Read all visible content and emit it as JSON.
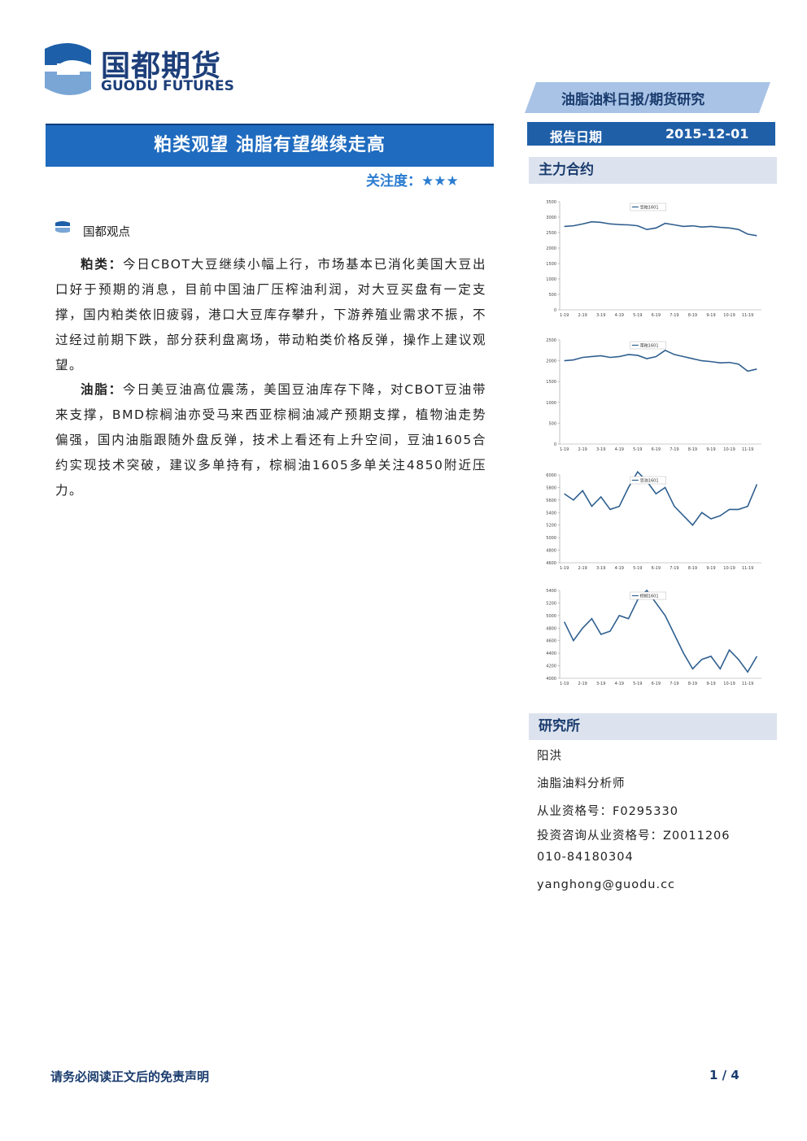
{
  "header": {
    "logo_cn": "国都期货",
    "logo_en": "GUODU FUTURES",
    "category": "油脂油料日报/期货研究"
  },
  "title": "粕类观望 油脂有望继续走高",
  "attention": {
    "label": "关注度：",
    "stars": "★★★"
  },
  "section_heading": "国都观点",
  "paragraphs": [
    {
      "label": "粕类：",
      "text": "今日CBOT大豆继续小幅上行，市场基本已消化美国大豆出口好于预期的消息，目前中国油厂压榨油利润，对大豆买盘有一定支撑，国内粕类依旧疲弱，港口大豆库存攀升，下游养殖业需求不振，不过经过前期下跌，部分获利盘离场，带动粕类价格反弹，操作上建议观望。"
    },
    {
      "label": "油脂：",
      "text": "今日美豆油高位震荡，美国豆油库存下降，对CBOT豆油带来支撑，BMD棕榈油亦受马来西亚棕榈油减产预期支撑，植物油走势偏强，国内油脂跟随外盘反弹，技术上看还有上升空间，豆油1605合约实现技术突破，建议多单持有，棕榈油1605多单关注4850附近压力。"
    }
  ],
  "report_date": {
    "label": "报告日期",
    "value": "2015-12-01"
  },
  "contracts_heading": "主力合约",
  "chart_data": [
    {
      "type": "line",
      "categories": [
        "1-19",
        null,
        "2-19",
        null,
        "3-19",
        null,
        "4-19",
        null,
        "5-19",
        null,
        "6-19",
        null,
        "7-19",
        null,
        "8-19",
        null,
        "9-19",
        null,
        "10-19",
        null,
        "11-19",
        null
      ],
      "series": [
        {
          "name": "豆粕1601",
          "color": "#2f5f8f",
          "values": [
            2700,
            2720,
            2780,
            2850,
            2830,
            2780,
            2760,
            2750,
            2720,
            2600,
            2650,
            2800,
            2750,
            2700,
            2720,
            2680,
            2700,
            2670,
            2650,
            2600,
            2450,
            2400
          ]
        }
      ],
      "ylim": [
        0,
        3500
      ],
      "yticks": [
        0,
        500,
        1000,
        1500,
        2000,
        2500,
        3000,
        3500
      ]
    },
    {
      "type": "line",
      "categories": [
        "1-19",
        null,
        "2-19",
        null,
        "3-19",
        null,
        "4-19",
        null,
        "5-19",
        null,
        "6-19",
        null,
        "7-19",
        null,
        "8-19",
        null,
        "9-19",
        null,
        "10-19",
        null,
        "11-19",
        null
      ],
      "series": [
        {
          "name": "菜粕1601",
          "color": "#2f5f8f",
          "values": [
            2000,
            2020,
            2080,
            2100,
            2120,
            2080,
            2100,
            2150,
            2130,
            2050,
            2100,
            2250,
            2150,
            2100,
            2050,
            2000,
            1980,
            1950,
            1960,
            1920,
            1750,
            1800
          ]
        }
      ],
      "ylim": [
        0,
        2500
      ],
      "yticks": [
        0,
        500,
        1000,
        1500,
        2000,
        2500
      ]
    },
    {
      "type": "line",
      "categories": [
        "1-19",
        null,
        "2-19",
        null,
        "3-19",
        null,
        "4-19",
        null,
        "5-19",
        null,
        "6-19",
        null,
        "7-19",
        null,
        "8-19",
        null,
        "9-19",
        null,
        "10-19",
        null,
        "11-19",
        null
      ],
      "series": [
        {
          "name": "豆油1601",
          "color": "#2f5f8f",
          "values": [
            5700,
            5600,
            5750,
            5500,
            5650,
            5450,
            5500,
            5800,
            6050,
            5900,
            5700,
            5800,
            5500,
            5350,
            5200,
            5400,
            5300,
            5350,
            5450,
            5450,
            5500,
            5850
          ]
        }
      ],
      "ylim": [
        4600,
        6000
      ],
      "yticks": [
        4600,
        4800,
        5000,
        5200,
        5400,
        5600,
        5800,
        6000
      ]
    },
    {
      "type": "line",
      "categories": [
        "1-19",
        null,
        "2-19",
        null,
        "3-19",
        null,
        "4-19",
        null,
        "5-19",
        null,
        "6-19",
        null,
        "7-19",
        null,
        "8-19",
        null,
        "9-19",
        null,
        "10-19",
        null,
        "11-19",
        null
      ],
      "series": [
        {
          "name": "棕榈1601",
          "color": "#2f5f8f",
          "values": [
            4900,
            4600,
            4800,
            4950,
            4700,
            4750,
            5000,
            4950,
            5250,
            5400,
            5200,
            5000,
            4700,
            4400,
            4150,
            4300,
            4350,
            4150,
            4450,
            4300,
            4100,
            4350
          ]
        }
      ],
      "ylim": [
        4000,
        5400
      ],
      "yticks": [
        4000,
        4200,
        4400,
        4600,
        4800,
        5000,
        5200,
        5400
      ]
    }
  ],
  "research": {
    "heading": "研究所",
    "lines": [
      "阳洪",
      "油脂油料分析师",
      "从业资格号：F0295330",
      "投资咨询从业资格号：Z0011206",
      "010-84180304",
      "yanghong@guodu.cc"
    ]
  },
  "footer": {
    "disclaimer": "请务必阅读正文后的免责声明",
    "page": "1 / 4"
  }
}
